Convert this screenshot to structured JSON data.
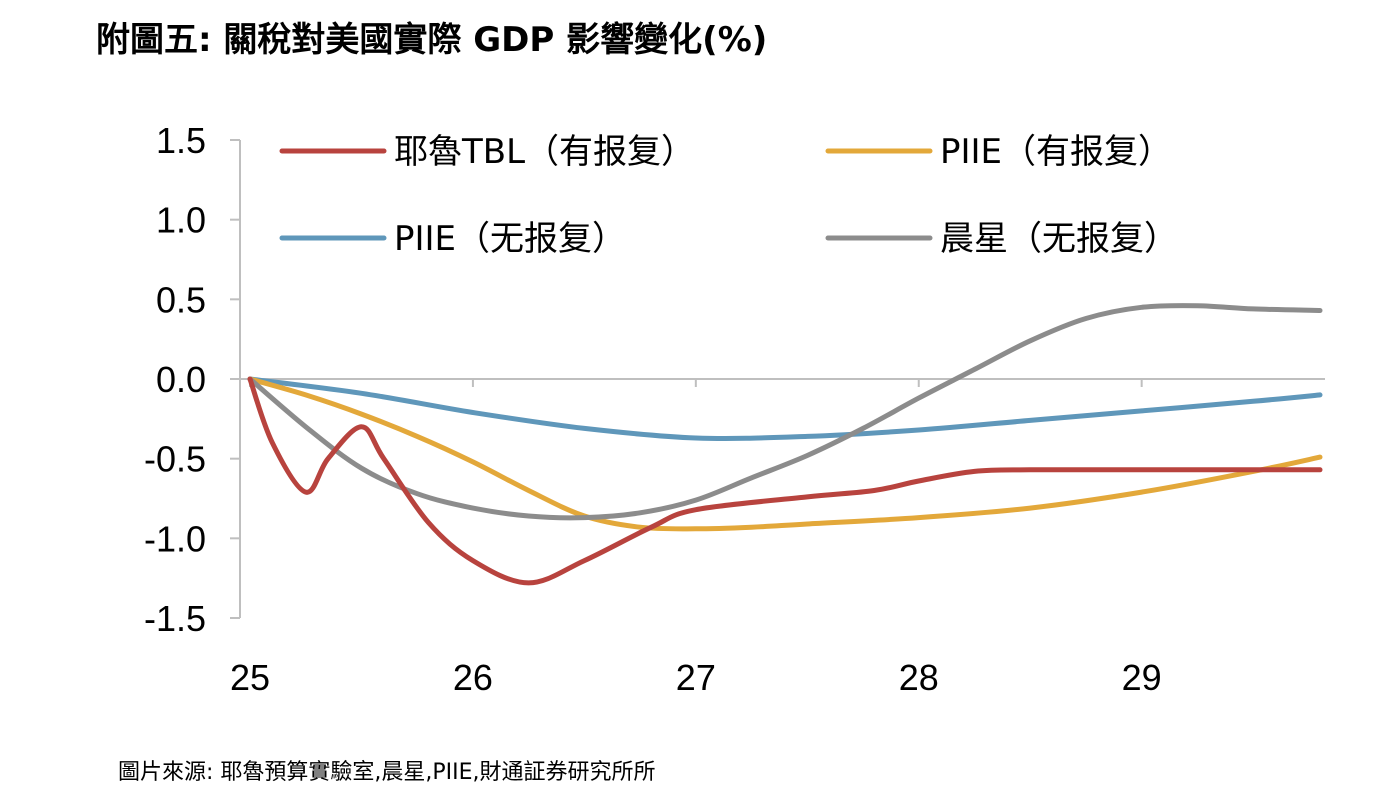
{
  "title": "附圖五: 關稅對美國實際 GDP 影響變化(%)",
  "source": "圖片來源: 耶魯預算實驗室,晨星,PIIE,財通証券研究所所",
  "chart_data": {
    "type": "line",
    "title": "附圖五: 關稅對美國實際 GDP 影響變化(%)",
    "xlabel": "",
    "ylabel": "",
    "xlim": [
      25,
      29.8
    ],
    "ylim": [
      -1.5,
      1.5
    ],
    "x_ticks": [
      25,
      26,
      27,
      28,
      29
    ],
    "x_tick_labels": [
      "25",
      "26",
      "27",
      "28",
      "29"
    ],
    "y_ticks": [
      1.5,
      1.0,
      0.5,
      0.0,
      -0.5,
      -1.0,
      -1.5
    ],
    "y_tick_labels": [
      "1.5",
      "1.0",
      "0.5",
      "0.0",
      "-0.5",
      "-1.0",
      "-1.5"
    ],
    "grid": false,
    "legend_position": "top",
    "series": [
      {
        "name": "耶魯TBL（有报复）",
        "color": "#b8433e",
        "x": [
          25.0,
          25.1,
          25.25,
          25.35,
          25.5,
          25.6,
          25.8,
          26.0,
          26.25,
          26.5,
          26.8,
          27.0,
          27.5,
          27.8,
          28.0,
          28.25,
          28.5,
          29.0,
          29.8
        ],
        "y": [
          0.0,
          -0.4,
          -0.71,
          -0.5,
          -0.3,
          -0.5,
          -0.9,
          -1.14,
          -1.28,
          -1.14,
          -0.93,
          -0.82,
          -0.74,
          -0.7,
          -0.64,
          -0.58,
          -0.57,
          -0.57,
          -0.57
        ]
      },
      {
        "name": "PIIE（有报复）",
        "color": "#e3a83a",
        "x": [
          25.0,
          25.25,
          25.5,
          25.75,
          26.0,
          26.25,
          26.5,
          26.75,
          27.0,
          27.25,
          27.5,
          28.0,
          28.5,
          29.0,
          29.5,
          29.8
        ],
        "y": [
          0.0,
          -0.1,
          -0.22,
          -0.36,
          -0.52,
          -0.7,
          -0.86,
          -0.93,
          -0.94,
          -0.93,
          -0.91,
          -0.87,
          -0.81,
          -0.71,
          -0.58,
          -0.49
        ]
      },
      {
        "name": "PIIE（无报复）",
        "color": "#5f97ba",
        "x": [
          25.0,
          25.5,
          26.0,
          26.5,
          27.0,
          27.5,
          28.0,
          28.5,
          29.0,
          29.5,
          29.8
        ],
        "y": [
          0.0,
          -0.09,
          -0.21,
          -0.31,
          -0.37,
          -0.36,
          -0.32,
          -0.26,
          -0.2,
          -0.14,
          -0.1
        ]
      },
      {
        "name": "晨星（无报复）",
        "color": "#8c8c8c",
        "x": [
          25.0,
          25.25,
          25.5,
          25.75,
          26.0,
          26.25,
          26.5,
          26.75,
          27.0,
          27.25,
          27.5,
          27.75,
          28.0,
          28.25,
          28.5,
          28.75,
          29.0,
          29.25,
          29.5,
          29.8
        ],
        "y": [
          0.0,
          -0.3,
          -0.56,
          -0.72,
          -0.81,
          -0.86,
          -0.87,
          -0.84,
          -0.76,
          -0.62,
          -0.48,
          -0.31,
          -0.12,
          0.06,
          0.24,
          0.38,
          0.45,
          0.46,
          0.44,
          0.43
        ]
      }
    ]
  }
}
